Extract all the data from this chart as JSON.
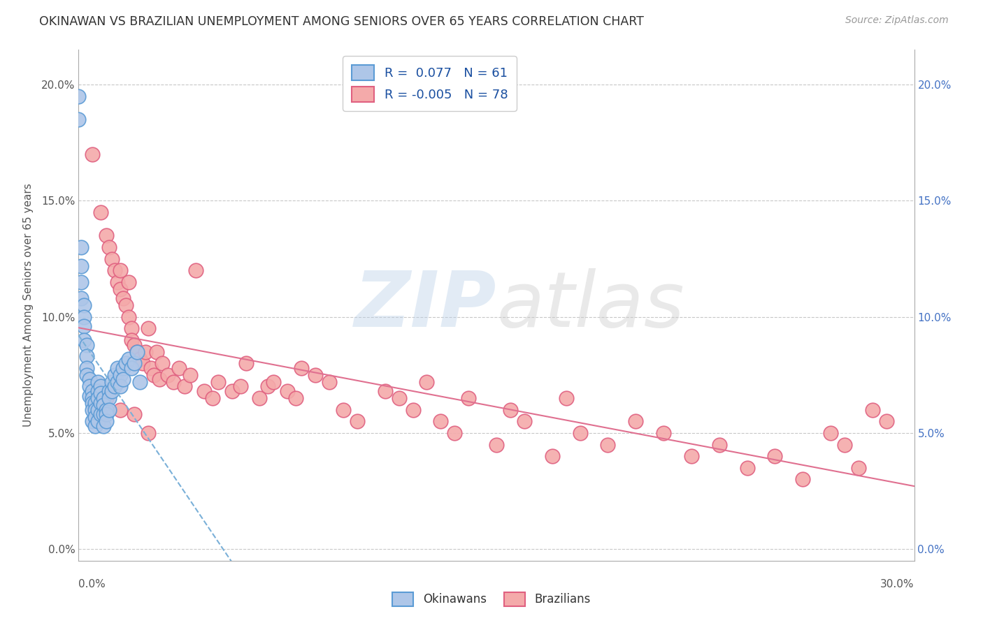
{
  "title": "OKINAWAN VS BRAZILIAN UNEMPLOYMENT AMONG SENIORS OVER 65 YEARS CORRELATION CHART",
  "source": "Source: ZipAtlas.com",
  "ylabel": "Unemployment Among Seniors over 65 years",
  "xlim": [
    0.0,
    0.3
  ],
  "ylim": [
    -0.005,
    0.215
  ],
  "yticks": [
    0.0,
    0.05,
    0.1,
    0.15,
    0.2
  ],
  "ytick_labels_left": [
    "0.0%",
    "5.0%",
    "10.0%",
    "15.0%",
    "20.0%"
  ],
  "ytick_labels_right": [
    "0.0%",
    "5.0%",
    "10.0%",
    "15.0%",
    "20.0%"
  ],
  "okinawan_R": 0.077,
  "okinawan_N": 61,
  "brazilian_R": -0.005,
  "brazilian_N": 78,
  "okinawan_color": "#aec6e8",
  "okinawan_edge": "#5b9bd5",
  "brazilian_color": "#f4aaaa",
  "brazilian_edge": "#e06080",
  "trend_okinawan_color": "#7ab0d8",
  "trend_brazilian_color": "#e07090",
  "background_color": "#ffffff",
  "grid_color": "#c8c8c8",
  "title_color": "#333333",
  "source_color": "#999999",
  "legend_label_color": "#1a4fa0",
  "okinawan_x": [
    0.0,
    0.0,
    0.001,
    0.001,
    0.001,
    0.001,
    0.002,
    0.002,
    0.002,
    0.002,
    0.003,
    0.003,
    0.003,
    0.003,
    0.004,
    0.004,
    0.004,
    0.005,
    0.005,
    0.005,
    0.005,
    0.005,
    0.006,
    0.006,
    0.006,
    0.006,
    0.007,
    0.007,
    0.007,
    0.007,
    0.007,
    0.008,
    0.008,
    0.008,
    0.008,
    0.009,
    0.009,
    0.009,
    0.009,
    0.01,
    0.01,
    0.01,
    0.011,
    0.011,
    0.011,
    0.012,
    0.012,
    0.013,
    0.013,
    0.014,
    0.014,
    0.015,
    0.015,
    0.016,
    0.016,
    0.017,
    0.018,
    0.019,
    0.02,
    0.021,
    0.022
  ],
  "okinawan_y": [
    0.195,
    0.185,
    0.13,
    0.122,
    0.115,
    0.108,
    0.105,
    0.1,
    0.096,
    0.09,
    0.088,
    0.083,
    0.078,
    0.075,
    0.073,
    0.07,
    0.066,
    0.068,
    0.065,
    0.063,
    0.06,
    0.055,
    0.063,
    0.06,
    0.057,
    0.053,
    0.072,
    0.068,
    0.065,
    0.06,
    0.055,
    0.07,
    0.067,
    0.063,
    0.058,
    0.065,
    0.062,
    0.058,
    0.053,
    0.06,
    0.058,
    0.055,
    0.068,
    0.065,
    0.06,
    0.072,
    0.068,
    0.075,
    0.07,
    0.078,
    0.072,
    0.075,
    0.07,
    0.078,
    0.073,
    0.08,
    0.082,
    0.078,
    0.08,
    0.085,
    0.072
  ],
  "brazilian_x": [
    0.005,
    0.008,
    0.01,
    0.011,
    0.012,
    0.013,
    0.014,
    0.015,
    0.015,
    0.016,
    0.017,
    0.018,
    0.018,
    0.019,
    0.019,
    0.02,
    0.021,
    0.022,
    0.023,
    0.024,
    0.025,
    0.026,
    0.027,
    0.028,
    0.029,
    0.03,
    0.032,
    0.034,
    0.036,
    0.038,
    0.04,
    0.042,
    0.045,
    0.048,
    0.05,
    0.055,
    0.058,
    0.06,
    0.065,
    0.068,
    0.07,
    0.075,
    0.078,
    0.08,
    0.085,
    0.09,
    0.095,
    0.1,
    0.11,
    0.115,
    0.12,
    0.125,
    0.13,
    0.135,
    0.14,
    0.15,
    0.155,
    0.16,
    0.17,
    0.175,
    0.18,
    0.19,
    0.2,
    0.21,
    0.22,
    0.23,
    0.24,
    0.25,
    0.26,
    0.27,
    0.275,
    0.28,
    0.285,
    0.29,
    0.01,
    0.015,
    0.02,
    0.025
  ],
  "brazilian_y": [
    0.17,
    0.145,
    0.135,
    0.13,
    0.125,
    0.12,
    0.115,
    0.12,
    0.112,
    0.108,
    0.105,
    0.1,
    0.115,
    0.095,
    0.09,
    0.088,
    0.085,
    0.082,
    0.08,
    0.085,
    0.095,
    0.078,
    0.075,
    0.085,
    0.073,
    0.08,
    0.075,
    0.072,
    0.078,
    0.07,
    0.075,
    0.12,
    0.068,
    0.065,
    0.072,
    0.068,
    0.07,
    0.08,
    0.065,
    0.07,
    0.072,
    0.068,
    0.065,
    0.078,
    0.075,
    0.072,
    0.06,
    0.055,
    0.068,
    0.065,
    0.06,
    0.072,
    0.055,
    0.05,
    0.065,
    0.045,
    0.06,
    0.055,
    0.04,
    0.065,
    0.05,
    0.045,
    0.055,
    0.05,
    0.04,
    0.045,
    0.035,
    0.04,
    0.03,
    0.05,
    0.045,
    0.035,
    0.06,
    0.055,
    0.065,
    0.06,
    0.058,
    0.05
  ]
}
